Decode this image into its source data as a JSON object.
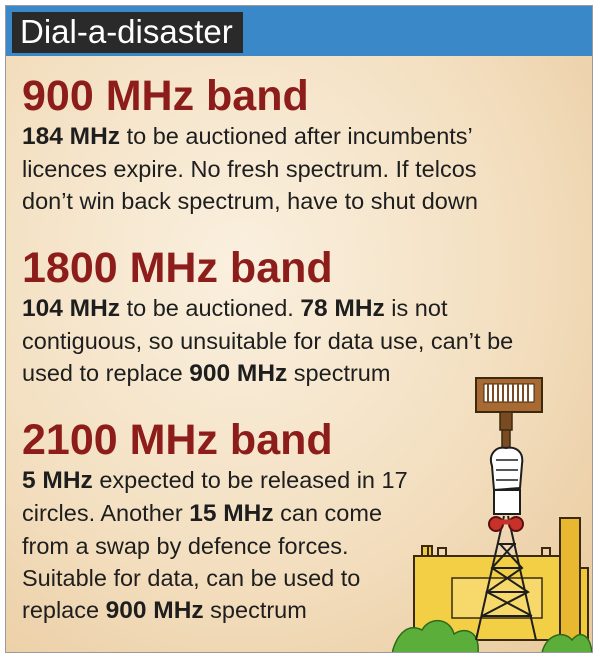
{
  "header": {
    "title": "Dial-a-disaster"
  },
  "bands": [
    {
      "title": "900 MHz band",
      "line1": {
        "b1": "184 MHz",
        "t1": " to be auctioned after incumbents’"
      },
      "line2": {
        "t1": "licences expire. No fresh spectrum.  If telcos"
      },
      "line3": {
        "t1": "don’t win back spectrum, have to shut down"
      }
    },
    {
      "title": "1800 MHz band",
      "line1": {
        "b1": "104 MHz",
        "t1": " to be auctioned. ",
        "b2": "78 MHz",
        "t2": "  is not"
      },
      "line2": {
        "t1": "contiguous, so unsuitable for data use, can’t be"
      },
      "line3": {
        "t1": "used to replace ",
        "b1": "900 MHz",
        "t2": " spectrum"
      }
    },
    {
      "title": "2100 MHz band",
      "line1": {
        "b1": "5 MHz",
        "t1": " expected to be released in 17"
      },
      "line2": {
        "t1": "circles. Another ",
        "b1": "15 MHz",
        "t2": " can come"
      },
      "line3": {
        "t1": "from a swap by defence forces."
      },
      "line4": {
        "t1": "Suitable for data, can be used to"
      },
      "line5": {
        "t1": "replace ",
        "b1": "900 MHz",
        "t2": " spectrum"
      }
    }
  ],
  "colors": {
    "header_bg": "#3b88c8",
    "title_box": "#2a2a2a",
    "band_title": "#8c1d1a",
    "body_text": "#1e1e1e",
    "background": "#f3dfc0"
  },
  "icons": [
    "hand-holding-mobile-phone-icon",
    "transmission-tower-icon",
    "fort-wall-icon"
  ]
}
